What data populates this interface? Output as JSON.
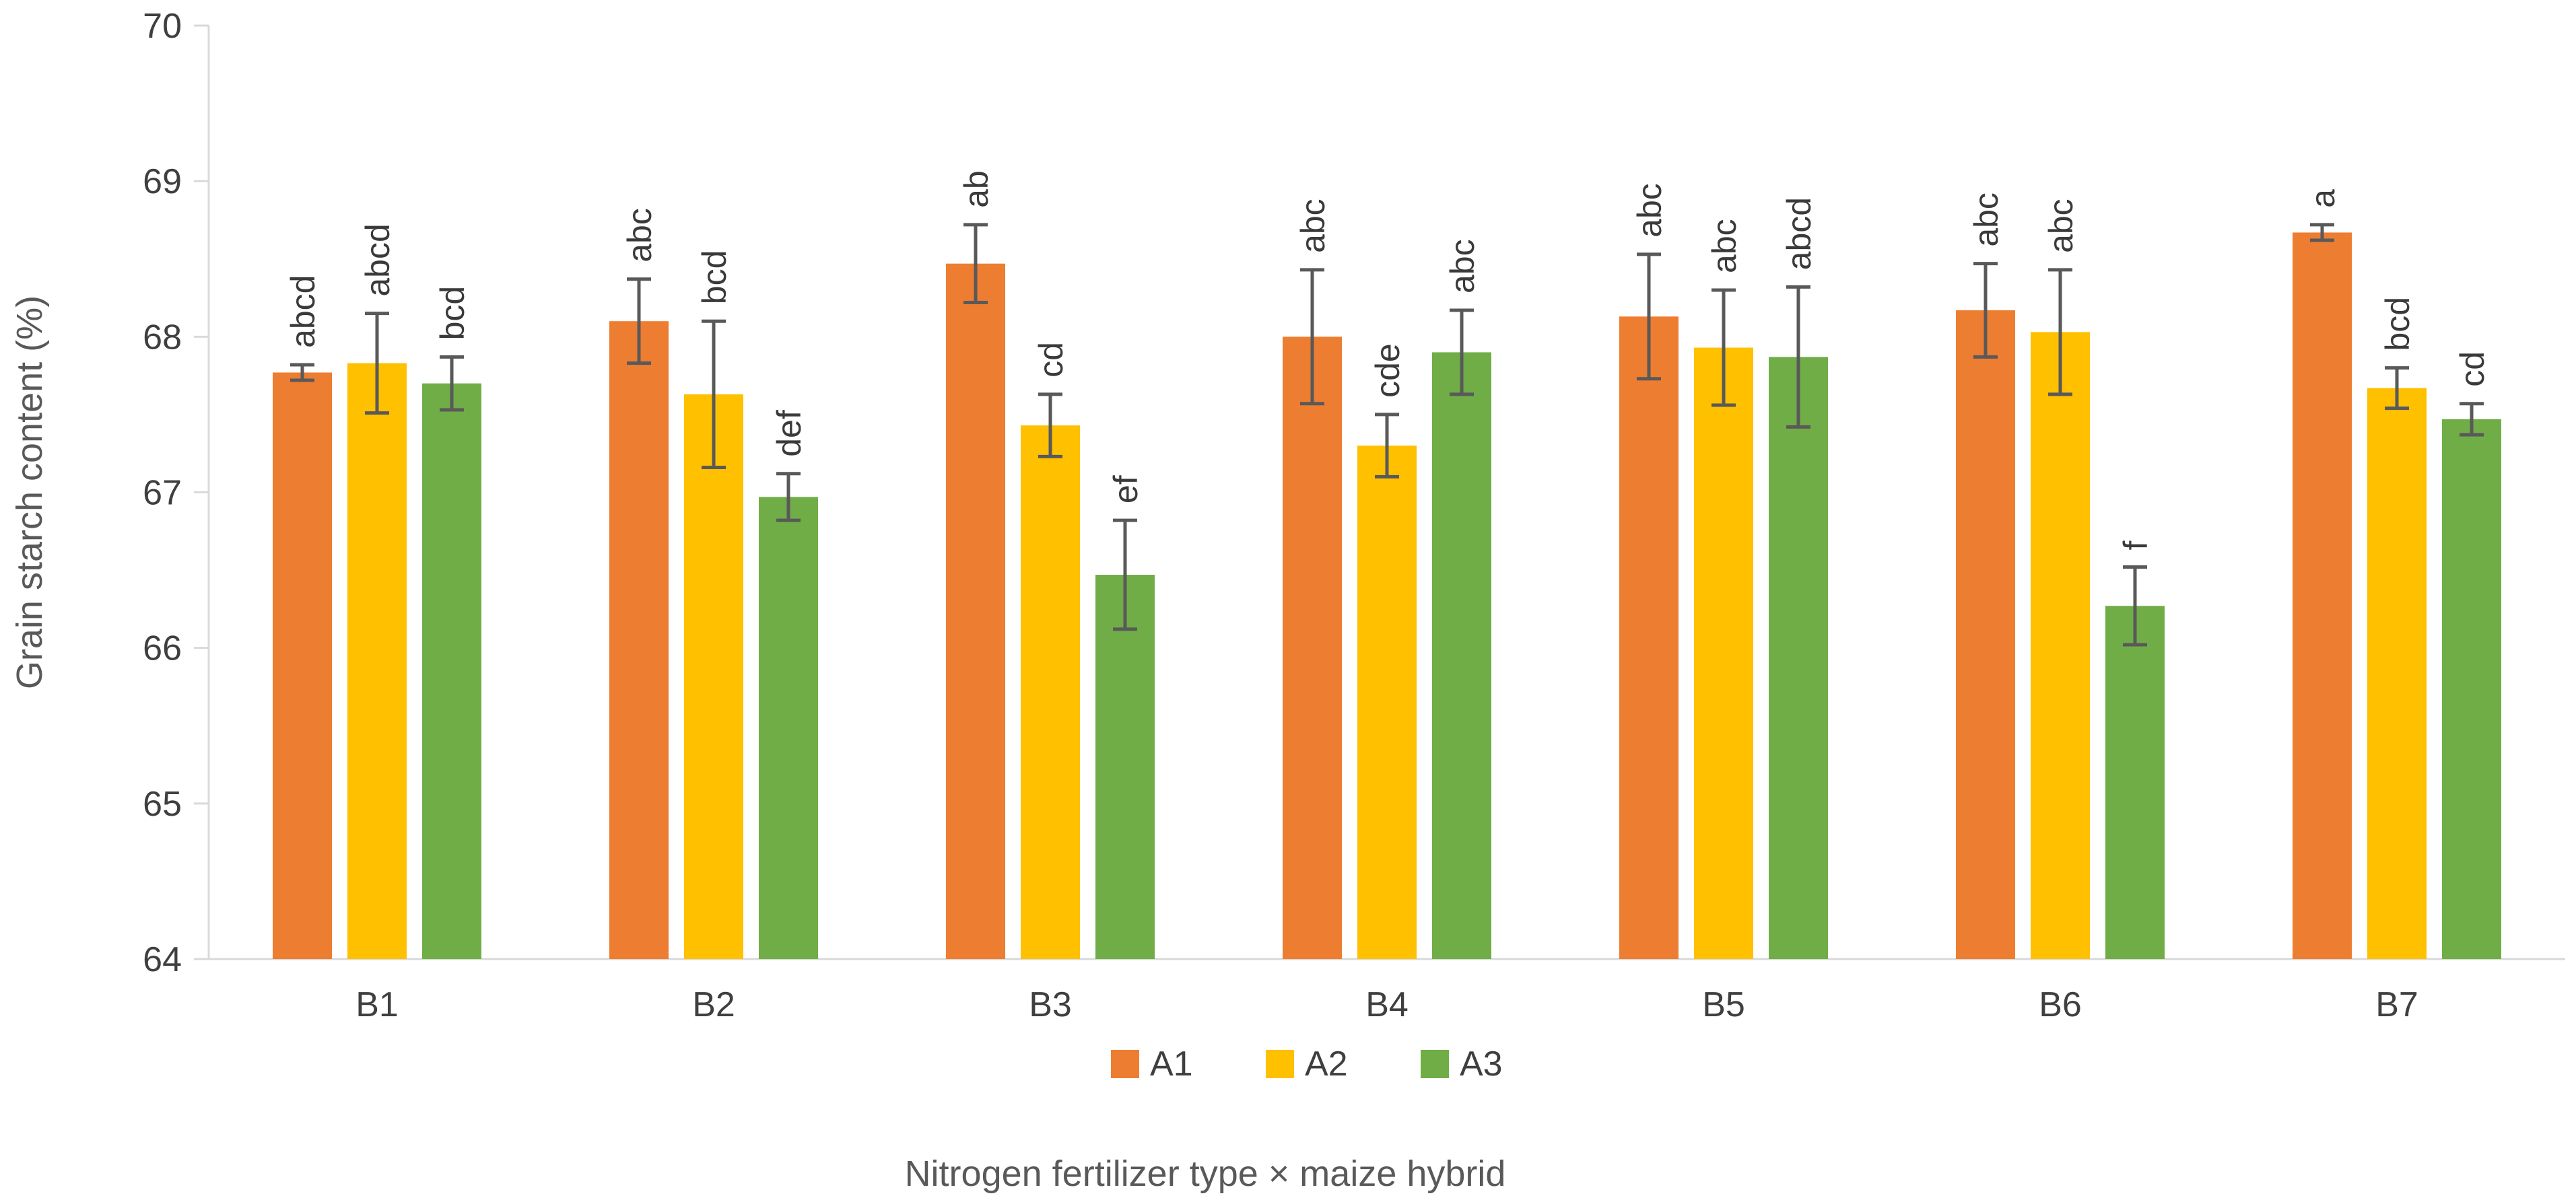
{
  "chart_data": {
    "type": "bar",
    "title": "",
    "xlabel": "Nitrogen fertilizer type × maize hybrid",
    "ylabel": "Grain starch content (%)",
    "ylim": [
      64,
      70
    ],
    "yticks": [
      "64",
      "65",
      "66",
      "67",
      "68",
      "69",
      "70"
    ],
    "categories": [
      "B1",
      "B2",
      "B3",
      "B4",
      "B5",
      "B6",
      "B7"
    ],
    "legend_position": "bottom",
    "series": [
      {
        "name": "A1",
        "color": "#ED7D31",
        "values": [
          67.77,
          68.1,
          68.47,
          68.0,
          68.13,
          68.17,
          68.67
        ],
        "errors": [
          0.05,
          0.27,
          0.25,
          0.43,
          0.4,
          0.3,
          0.05
        ],
        "letters": [
          "abcd",
          "abc",
          "ab",
          "abc",
          "abc",
          "abc",
          "a"
        ]
      },
      {
        "name": "A2",
        "color": "#FFC000",
        "values": [
          67.83,
          67.63,
          67.43,
          67.3,
          67.93,
          68.03,
          67.67
        ],
        "errors": [
          0.32,
          0.47,
          0.2,
          0.2,
          0.37,
          0.4,
          0.13
        ],
        "letters": [
          "abcd",
          "bcd",
          "cd",
          "cde",
          "abc",
          "abc",
          "bcd"
        ]
      },
      {
        "name": "A3",
        "color": "#70AD47",
        "values": [
          67.7,
          66.97,
          66.47,
          67.9,
          67.87,
          66.27,
          67.47
        ],
        "errors": [
          0.17,
          0.15,
          0.35,
          0.27,
          0.45,
          0.25,
          0.1
        ],
        "letters": [
          "bcd",
          "def",
          "ef",
          "abc",
          "abcd",
          "f",
          "cd"
        ]
      }
    ]
  }
}
